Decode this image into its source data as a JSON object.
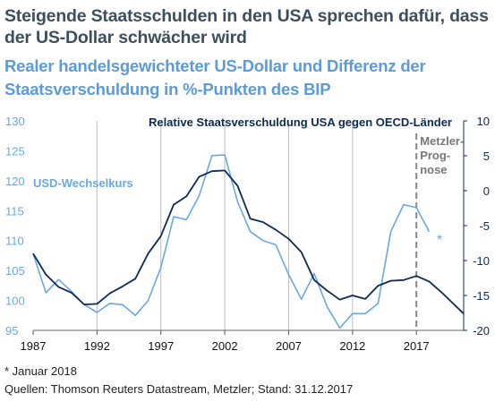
{
  "title_line1": "Steigende Staatsschulden in den USA sprechen dafür, dass",
  "title_line2": "der US-Dollar schwächer wird",
  "subtitle_line1": "Realer handelsgewichteter US-Dollar und Differenz der",
  "subtitle_line2": "Staatsverschuldung in %-Punkten des BIP",
  "footnote": "* Januar 2018",
  "source": "Quellen: Thomson Reuters Datastream, Metzler; Stand: 31.12.2017",
  "colors": {
    "usd": "#6aa8e3",
    "debt": "#0d2b55",
    "forecast": "#888888",
    "grid": "#bdbdbd"
  },
  "chart_data": {
    "type": "line",
    "x_ticks": [
      "1987",
      "1992",
      "1997",
      "2002",
      "2007",
      "2012",
      "2017"
    ],
    "xlim": [
      1987,
      2020.7
    ],
    "y_left": {
      "ticks": [
        "130",
        "125",
        "120",
        "115",
        "110",
        "105",
        "100",
        "95"
      ],
      "ylim": [
        95,
        130
      ]
    },
    "y_right": {
      "ticks": [
        "10",
        "5",
        "0",
        "-5",
        "-10",
        "-15",
        "-20"
      ],
      "ylim": [
        -20,
        10
      ]
    },
    "forecast_start": 2017,
    "forecast_label": [
      "Metzler-",
      "Prog-",
      "nose"
    ],
    "marker_label": "*",
    "series": [
      {
        "name": "USD-Wechselkurs",
        "axis": "left",
        "points": [
          [
            1987,
            107.8
          ],
          [
            1988,
            101.3
          ],
          [
            1989,
            103.5
          ],
          [
            1990,
            101.5
          ],
          [
            1991,
            99.3
          ],
          [
            1992,
            98.0
          ],
          [
            1993,
            99.5
          ],
          [
            1994,
            99.3
          ],
          [
            1995,
            97.5
          ],
          [
            1996,
            100.0
          ],
          [
            1997,
            105.5
          ],
          [
            1998,
            114.0
          ],
          [
            1999,
            113.5
          ],
          [
            2000,
            117.5
          ],
          [
            2001,
            124.2
          ],
          [
            2002,
            124.3
          ],
          [
            2003,
            116.5
          ],
          [
            2004,
            111.5
          ],
          [
            2005,
            110.0
          ],
          [
            2006,
            109.3
          ],
          [
            2007,
            104.3
          ],
          [
            2008,
            100.2
          ],
          [
            2009,
            104.5
          ],
          [
            2010,
            99.0
          ],
          [
            2011,
            95.4
          ],
          [
            2012,
            97.8
          ],
          [
            2013,
            97.8
          ],
          [
            2014,
            99.5
          ],
          [
            2015,
            111.5
          ],
          [
            2016,
            116.0
          ],
          [
            2017,
            115.5
          ],
          [
            2018,
            111.5
          ]
        ]
      },
      {
        "name": "Relative Staatsverschuldung USA gegen OECD-Länder",
        "axis": "right",
        "points": [
          [
            1987,
            -9.0
          ],
          [
            1988,
            -12.0
          ],
          [
            1989,
            -13.8
          ],
          [
            1990,
            -14.6
          ],
          [
            1991,
            -16.3
          ],
          [
            1992,
            -16.2
          ],
          [
            1993,
            -14.7
          ],
          [
            1994,
            -13.7
          ],
          [
            1995,
            -12.6
          ],
          [
            1996,
            -9.0
          ],
          [
            1997,
            -6.5
          ],
          [
            1998,
            -2.0
          ],
          [
            1999,
            -0.8
          ],
          [
            2000,
            2.0
          ],
          [
            2001,
            2.8
          ],
          [
            2002,
            2.9
          ],
          [
            2003,
            0.7
          ],
          [
            2004,
            -4.0
          ],
          [
            2005,
            -4.5
          ],
          [
            2006,
            -5.6
          ],
          [
            2007,
            -6.9
          ],
          [
            2008,
            -8.8
          ],
          [
            2009,
            -12.8
          ],
          [
            2010,
            -14.3
          ],
          [
            2011,
            -15.6
          ],
          [
            2012,
            -15.0
          ],
          [
            2013,
            -15.5
          ],
          [
            2014,
            -13.6
          ],
          [
            2015,
            -12.9
          ],
          [
            2016,
            -12.8
          ],
          [
            2017,
            -12.2
          ],
          [
            2018,
            -13.0
          ],
          [
            2019,
            -14.6
          ],
          [
            2020.7,
            -17.6
          ]
        ]
      }
    ]
  }
}
